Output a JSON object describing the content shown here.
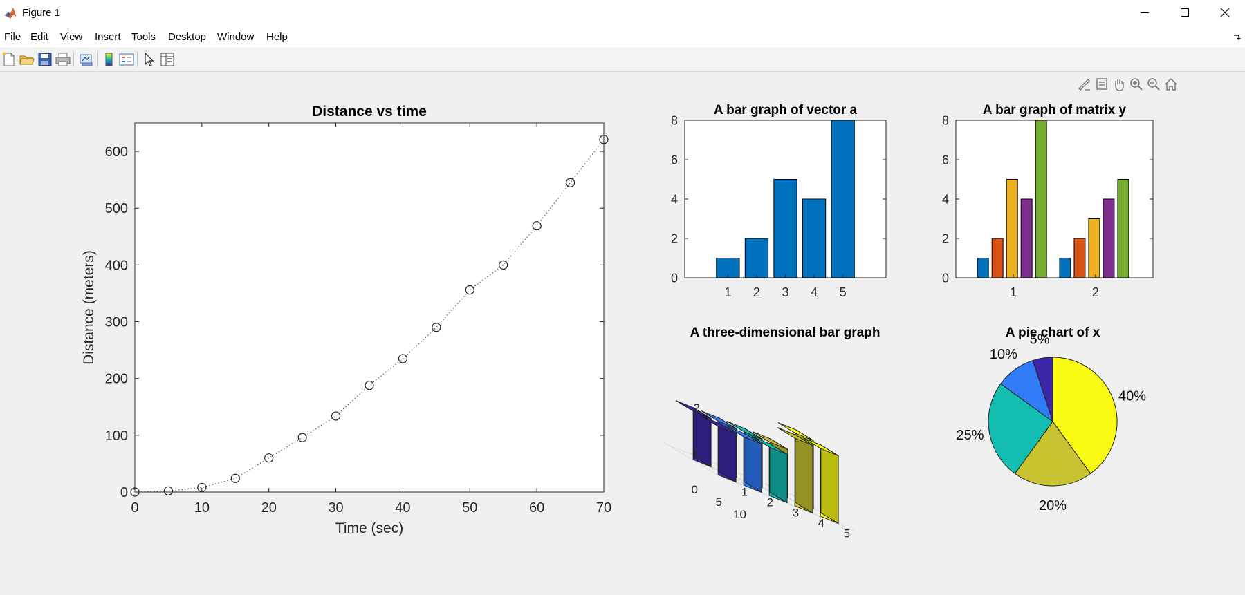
{
  "window": {
    "title": "Figure 1"
  },
  "menu": [
    "File",
    "Edit",
    "View",
    "Insert",
    "Tools",
    "Desktop",
    "Window",
    "Help"
  ],
  "toolbar_icons": [
    "new-figure-icon",
    "open-file-icon",
    "save-icon",
    "print-icon",
    "link-plot-icon",
    "insert-colorbar-icon",
    "insert-legend-icon",
    "edit-plot-icon",
    "property-inspector-icon"
  ],
  "axes_toolbar_icons": [
    "brush-icon",
    "data-tips-icon",
    "pan-icon",
    "zoom-in-icon",
    "zoom-out-icon",
    "home-icon"
  ],
  "colors": {
    "bar_blue": "#0072bd",
    "series": [
      "#0072bd",
      "#d95319",
      "#edb120",
      "#7e2f8e",
      "#77ac30"
    ],
    "parula": [
      "#3e26a8",
      "#2f7cf6",
      "#13bdb0",
      "#c8c330",
      "#f9fb15"
    ]
  },
  "chart_data": [
    {
      "type": "line",
      "title": "Distance vs time",
      "xlabel": "Time (sec)",
      "ylabel": "Distance (meters)",
      "x": [
        0,
        5,
        10,
        15,
        20,
        25,
        30,
        35,
        40,
        45,
        50,
        55,
        60,
        65,
        70
      ],
      "y": [
        0,
        2,
        8,
        24,
        60,
        96,
        134,
        188,
        235,
        290,
        356,
        400,
        469,
        545,
        621
      ],
      "xlim": [
        0,
        70
      ],
      "ylim": [
        0,
        650
      ],
      "xticks": [
        "0",
        "10",
        "20",
        "30",
        "40",
        "50",
        "60",
        "70"
      ],
      "yticks": [
        "0",
        "100",
        "200",
        "300",
        "400",
        "500",
        "600"
      ],
      "marker": "circle",
      "line_style": "dotted",
      "grid": false
    },
    {
      "type": "bar",
      "title": "A bar graph of vector a",
      "categories": [
        "1",
        "2",
        "3",
        "4",
        "5"
      ],
      "values": [
        1,
        2,
        5,
        4,
        8
      ],
      "ylim": [
        0,
        8
      ],
      "yticks": [
        "0",
        "2",
        "4",
        "6",
        "8"
      ]
    },
    {
      "type": "bar",
      "title": "A bar graph of matrix y",
      "categories": [
        "1",
        "2"
      ],
      "series": [
        {
          "values": [
            1,
            1
          ]
        },
        {
          "values": [
            2,
            2
          ]
        },
        {
          "values": [
            5,
            3
          ]
        },
        {
          "values": [
            4,
            4
          ]
        },
        {
          "values": [
            8,
            5
          ]
        }
      ],
      "ylim": [
        0,
        8
      ],
      "yticks": [
        "0",
        "2",
        "4",
        "6",
        "8"
      ]
    },
    {
      "type": "bar",
      "title": "A three-dimensional bar graph",
      "x_ticks": [
        "1",
        "2",
        "3",
        "4",
        "5"
      ],
      "y_ticks": [
        "1",
        "2"
      ],
      "z_ticks": [
        "0",
        "5",
        "10"
      ],
      "rows": [
        {
          "y": "1",
          "values": [
            5,
            5,
            5,
            7,
            7
          ]
        },
        {
          "y": "2",
          "values": [
            5,
            5,
            5,
            5,
            7
          ]
        }
      ]
    },
    {
      "type": "pie",
      "title": "A pie chart of x",
      "slices": [
        {
          "label": "40%",
          "value": 40
        },
        {
          "label": "20%",
          "value": 20
        },
        {
          "label": "25%",
          "value": 25
        },
        {
          "label": "10%",
          "value": 10
        },
        {
          "label": "5%",
          "value": 5
        }
      ]
    }
  ]
}
